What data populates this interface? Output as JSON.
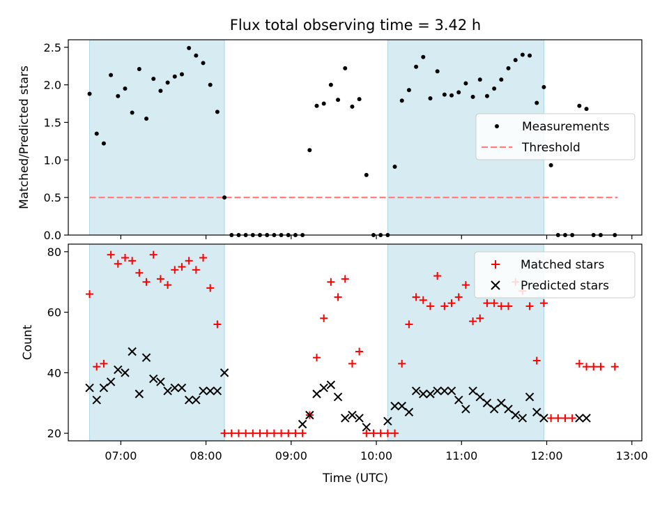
{
  "title": "Flux total observing time = 3.42 h",
  "xlabel": "Time (UTC)",
  "x_ticks": [
    "07:00",
    "08:00",
    "09:00",
    "10:00",
    "11:00",
    "12:00",
    "13:00"
  ],
  "chart_data": [
    {
      "type": "scatter",
      "ylabel": "Matched/Predicted stars",
      "ylim": [
        0,
        2.6
      ],
      "yticks": [
        0.0,
        0.5,
        1.0,
        1.5,
        2.0,
        2.5
      ],
      "xlim": [
        "06:23",
        "13:07"
      ],
      "shaded_intervals": [
        [
          "06:38",
          "08:13"
        ],
        [
          "10:08",
          "11:58"
        ]
      ],
      "shade_color": "#add8e6",
      "legend_position": "center-right",
      "legend": [
        "Measurements",
        "Threshold"
      ],
      "threshold": {
        "name": "Threshold",
        "value": 0.5,
        "x_range": [
          "06:38",
          "12:50"
        ],
        "color": "#ff7f7f",
        "style": "dashed"
      },
      "series": [
        {
          "name": "Measurements",
          "marker": "dot",
          "color": "#000000",
          "x": [
            "06:38",
            "06:43",
            "06:48",
            "06:53",
            "06:58",
            "07:03",
            "07:08",
            "07:13",
            "07:18",
            "07:23",
            "07:28",
            "07:33",
            "07:38",
            "07:43",
            "07:48",
            "07:53",
            "07:58",
            "08:03",
            "08:08",
            "08:13",
            "08:18",
            "08:23",
            "08:28",
            "08:33",
            "08:38",
            "08:43",
            "08:48",
            "08:53",
            "08:58",
            "09:03",
            "09:08",
            "09:13",
            "09:18",
            "09:23",
            "09:28",
            "09:33",
            "09:38",
            "09:43",
            "09:48",
            "09:53",
            "09:58",
            "10:03",
            "10:08",
            "10:13",
            "10:18",
            "10:23",
            "10:28",
            "10:33",
            "10:38",
            "10:43",
            "10:48",
            "10:53",
            "10:58",
            "11:03",
            "11:08",
            "11:13",
            "11:18",
            "11:23",
            "11:28",
            "11:33",
            "11:38",
            "11:43",
            "11:48",
            "11:53",
            "11:58",
            "12:03",
            "12:08",
            "12:13",
            "12:18",
            "12:23",
            "12:28",
            "12:33",
            "12:38",
            "12:48"
          ],
          "y": [
            1.88,
            1.35,
            1.22,
            2.13,
            1.85,
            1.95,
            1.63,
            2.21,
            1.55,
            2.08,
            1.92,
            2.03,
            2.11,
            2.14,
            2.49,
            2.39,
            2.29,
            2.0,
            1.64,
            0.5,
            0,
            0,
            0,
            0,
            0,
            0,
            0,
            0,
            0,
            0,
            0,
            1.13,
            1.72,
            1.75,
            2.0,
            1.8,
            2.22,
            1.71,
            1.81,
            0.8,
            0,
            0,
            0,
            0.91,
            1.79,
            1.93,
            2.24,
            2.37,
            1.82,
            2.18,
            1.87,
            1.86,
            1.9,
            2.02,
            1.84,
            2.07,
            1.85,
            1.95,
            2.07,
            2.22,
            2.33,
            2.4,
            2.39,
            1.76,
            1.97,
            0.93,
            0,
            0,
            0,
            1.72,
            1.68,
            0,
            0,
            0
          ]
        }
      ]
    },
    {
      "type": "scatter",
      "ylabel": "Count",
      "ylim": [
        17.5,
        82.5
      ],
      "yticks": [
        20,
        40,
        60,
        80
      ],
      "xlim": [
        "06:23",
        "13:07"
      ],
      "shaded_intervals": [
        [
          "06:38",
          "08:13"
        ],
        [
          "10:08",
          "11:58"
        ]
      ],
      "shade_color": "#add8e6",
      "legend_position": "top-right",
      "legend": [
        "Matched stars",
        "Predicted stars"
      ],
      "series": [
        {
          "name": "Matched stars",
          "marker": "plus",
          "color": "#ff0000",
          "x": [
            "06:38",
            "06:43",
            "06:48",
            "06:53",
            "06:58",
            "07:03",
            "07:08",
            "07:13",
            "07:18",
            "07:23",
            "07:28",
            "07:33",
            "07:38",
            "07:43",
            "07:48",
            "07:53",
            "07:58",
            "08:03",
            "08:08",
            "08:13",
            "08:18",
            "08:23",
            "08:28",
            "08:33",
            "08:38",
            "08:43",
            "08:48",
            "08:53",
            "08:58",
            "09:03",
            "09:08",
            "09:13",
            "09:18",
            "09:23",
            "09:28",
            "09:33",
            "09:38",
            "09:43",
            "09:48",
            "09:53",
            "09:58",
            "10:03",
            "10:08",
            "10:13",
            "10:18",
            "10:23",
            "10:28",
            "10:33",
            "10:38",
            "10:43",
            "10:48",
            "10:53",
            "10:58",
            "11:03",
            "11:08",
            "11:13",
            "11:18",
            "11:23",
            "11:28",
            "11:33",
            "11:38",
            "11:43",
            "11:48",
            "11:53",
            "11:58",
            "12:03",
            "12:08",
            "12:13",
            "12:18",
            "12:23",
            "12:28",
            "12:33",
            "12:38",
            "12:48"
          ],
          "y": [
            66,
            42,
            43,
            79,
            76,
            78,
            77,
            73,
            70,
            79,
            71,
            69,
            74,
            75,
            77,
            74,
            78,
            68,
            56,
            20,
            20,
            20,
            20,
            20,
            20,
            20,
            20,
            20,
            20,
            20,
            20,
            26,
            45,
            58,
            70,
            65,
            71,
            43,
            47,
            20,
            20,
            20,
            20,
            20,
            43,
            56,
            65,
            64,
            62,
            72,
            62,
            63,
            65,
            69,
            57,
            58,
            63,
            63,
            62,
            62,
            70,
            67,
            62,
            44,
            63,
            25,
            25,
            25,
            25,
            43,
            42,
            42,
            42,
            42
          ]
        },
        {
          "name": "Predicted stars",
          "marker": "x",
          "color": "#000000",
          "x": [
            "06:38",
            "06:43",
            "06:48",
            "06:53",
            "06:58",
            "07:03",
            "07:08",
            "07:13",
            "07:18",
            "07:23",
            "07:28",
            "07:33",
            "07:38",
            "07:43",
            "07:48",
            "07:53",
            "07:58",
            "08:03",
            "08:08",
            "08:13",
            "09:08",
            "09:13",
            "09:18",
            "09:23",
            "09:28",
            "09:33",
            "09:38",
            "09:43",
            "09:48",
            "09:53",
            "10:08",
            "10:13",
            "10:18",
            "10:23",
            "10:28",
            "10:33",
            "10:38",
            "10:43",
            "10:48",
            "10:53",
            "10:58",
            "11:03",
            "11:08",
            "11:13",
            "11:18",
            "11:23",
            "11:28",
            "11:33",
            "11:38",
            "11:43",
            "11:48",
            "11:53",
            "11:58",
            "12:23",
            "12:28"
          ],
          "y": [
            35,
            31,
            35,
            37,
            41,
            40,
            47,
            33,
            45,
            38,
            37,
            34,
            35,
            35,
            31,
            31,
            34,
            34,
            34,
            40,
            23,
            26,
            33,
            35,
            36,
            32,
            25,
            26,
            25,
            22,
            24,
            29,
            29,
            27,
            34,
            33,
            33,
            34,
            34,
            34,
            31,
            28,
            34,
            32,
            30,
            28,
            30,
            28,
            26,
            25,
            32,
            27,
            25,
            25,
            25
          ]
        }
      ]
    }
  ]
}
